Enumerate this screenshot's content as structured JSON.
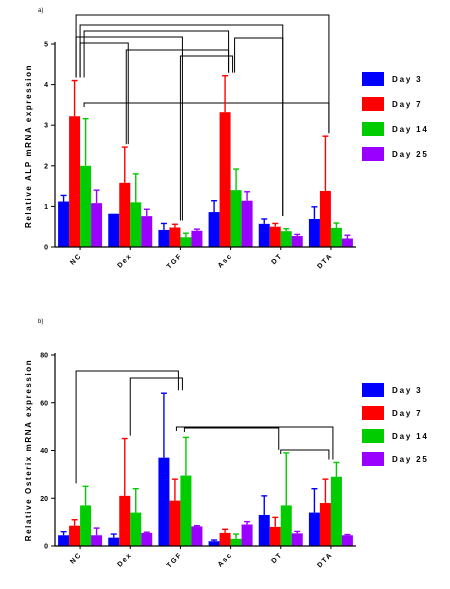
{
  "chart_data": [
    {
      "type": "bar",
      "panel_label": "a)",
      "ylabel": "Relative ALP mRNA expression",
      "categories": [
        "NC",
        "Dex",
        "TGF",
        "Asc",
        "DT",
        "DTA"
      ],
      "ylim": [
        0,
        5
      ],
      "yticks": [
        0,
        1,
        2,
        3,
        4,
        5
      ],
      "series": [
        {
          "name": "Day 3",
          "color": "#0000ff",
          "values": [
            1.12,
            0.82,
            0.42,
            0.86,
            0.57,
            0.69
          ],
          "errors": [
            0.15,
            0.0,
            0.16,
            0.28,
            0.12,
            0.3
          ]
        },
        {
          "name": "Day 7",
          "color": "#ff0000",
          "values": [
            3.22,
            1.58,
            0.48,
            3.32,
            0.5,
            1.38
          ],
          "errors": [
            0.88,
            0.88,
            0.08,
            0.9,
            0.08,
            1.35
          ]
        },
        {
          "name": "Day 14",
          "color": "#00cc00",
          "values": [
            2.0,
            1.1,
            0.24,
            1.4,
            0.39,
            0.47
          ],
          "errors": [
            1.16,
            0.7,
            0.1,
            0.52,
            0.06,
            0.12
          ]
        },
        {
          "name": "Day 25",
          "color": "#9900ff",
          "values": [
            1.08,
            0.76,
            0.4,
            1.14,
            0.27,
            0.21
          ],
          "errors": [
            0.32,
            0.17,
            0.04,
            0.22,
            0.04,
            0.08
          ]
        }
      ],
      "legend_position": "right"
    },
    {
      "type": "bar",
      "panel_label": "b)",
      "ylabel": "Relative Osterix mRNA expression",
      "categories": [
        "NC",
        "Dex",
        "TGF",
        "Asc",
        "DT",
        "DTA"
      ],
      "ylim": [
        0,
        80
      ],
      "yticks": [
        0,
        20,
        40,
        60,
        80
      ],
      "series": [
        {
          "name": "Day 3",
          "color": "#0000ff",
          "values": [
            4.5,
            3.5,
            37,
            2.0,
            13,
            14
          ],
          "errors": [
            1.5,
            1.5,
            27,
            0.5,
            8,
            10
          ]
        },
        {
          "name": "Day 7",
          "color": "#ff0000",
          "values": [
            8.5,
            21,
            19,
            5.5,
            8,
            18
          ],
          "errors": [
            2.5,
            24,
            9,
            1.5,
            4,
            10
          ]
        },
        {
          "name": "Day 14",
          "color": "#00cc00",
          "values": [
            17,
            14,
            29.5,
            3.0,
            17,
            29
          ],
          "errors": [
            8,
            10,
            16,
            2,
            22,
            6
          ]
        },
        {
          "name": "Day 25",
          "color": "#9900ff",
          "values": [
            4.5,
            5.5,
            8.2,
            9.0,
            5.3,
            4.5
          ],
          "errors": [
            3,
            0.3,
            0.3,
            1.2,
            0.8,
            0.3
          ]
        }
      ],
      "legend_position": "right"
    }
  ]
}
